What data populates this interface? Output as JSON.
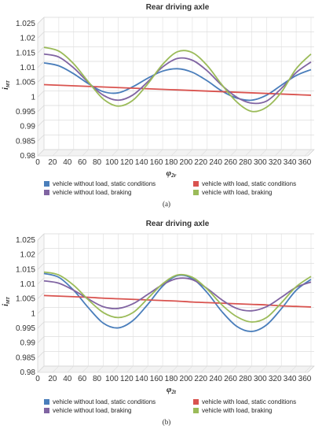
{
  "chart_data": [
    {
      "type": "line",
      "title": "Rear driving axle",
      "xlabel": "φ",
      "xlabel_sub": "2r",
      "ylabel": "i",
      "ylabel_sub": "MT",
      "ylim": [
        0.98,
        1.025
      ],
      "yticks": [
        "0.98",
        "0.985",
        "0.99",
        "0.995",
        "1",
        "1.005",
        "1.01",
        "1.015",
        "1.02",
        "1.025"
      ],
      "x": [
        0,
        20,
        40,
        60,
        80,
        100,
        120,
        140,
        160,
        180,
        200,
        220,
        240,
        260,
        280,
        300,
        320,
        340,
        360
      ],
      "grid": true,
      "legend_position": "bottom",
      "series": [
        {
          "name": "vehicle without load, static conditions",
          "color": "#4a7ebb",
          "values": [
            1.0095,
            1.0085,
            1.0058,
            1.0024,
            0.9997,
            0.9993,
            1.0014,
            1.0043,
            1.0067,
            1.0075,
            1.0063,
            1.0034,
            0.9999,
            0.9975,
            0.9968,
            0.9985,
            1.0019,
            1.0052,
            1.0072
          ]
        },
        {
          "name": "vehicle with load, static conditions",
          "color": "#d9534f",
          "values": [
            1.0021,
            1.0019,
            1.0017,
            1.0015,
            1.0013,
            1.0011,
            1.0009,
            1.0007,
            1.0005,
            1.0003,
            1.0001,
            0.9999,
            0.9997,
            0.9995,
            0.9993,
            0.9991,
            0.9989,
            0.9987,
            0.9985
          ]
        },
        {
          "name": "vehicle without load, braking",
          "color": "#8064a2",
          "values": [
            1.0125,
            1.0115,
            1.0078,
            1.0028,
            0.9985,
            0.9968,
            0.9986,
            1.0031,
            1.0081,
            1.011,
            1.0104,
            1.0068,
            1.0018,
            0.9978,
            0.9958,
            0.9965,
            1.0008,
            1.0062,
            1.0098
          ]
        },
        {
          "name": "vehicle with load, braking",
          "color": "#9bbb59",
          "values": [
            1.0148,
            1.0135,
            1.0092,
            1.003,
            0.9972,
            0.9948,
            0.9968,
            1.0024,
            1.009,
            1.0133,
            1.013,
            1.0086,
            1.002,
            0.9962,
            0.993,
            0.9944,
            0.9995,
            1.0075,
            1.0125
          ]
        }
      ],
      "caption": "(a)"
    },
    {
      "type": "line",
      "title": "Rear driving axle",
      "xlabel": "φ",
      "xlabel_sub": "2t",
      "ylabel": "i",
      "ylabel_sub": "MT",
      "ylim": [
        0.98,
        1.025
      ],
      "yticks": [
        "0.98",
        "0.985",
        "0.99",
        "0.995",
        "1",
        "1.005",
        "1.01",
        "1.015",
        "1.02",
        "1.025"
      ],
      "x": [
        0,
        20,
        40,
        60,
        80,
        100,
        120,
        140,
        160,
        180,
        200,
        220,
        240,
        260,
        280,
        300,
        320,
        340,
        360
      ],
      "grid": true,
      "legend_position": "bottom",
      "series": [
        {
          "name": "vehicle without load, static conditions",
          "color": "#4a7ebb",
          "values": [
            1.0115,
            1.0102,
            1.0058,
            0.9998,
            0.9946,
            0.993,
            0.9955,
            1.001,
            1.0072,
            1.0108,
            1.0098,
            1.005,
            0.9985,
            0.9935,
            0.9918,
            0.994,
            0.9995,
            1.0058,
            1.0095
          ]
        },
        {
          "name": "vehicle with load, static conditions",
          "color": "#d9534f",
          "values": [
            1.004,
            1.0038,
            1.0036,
            1.0034,
            1.0031,
            1.0029,
            1.0027,
            1.0025,
            1.0023,
            1.0021,
            1.0018,
            1.0016,
            1.0014,
            1.0012,
            1.001,
            1.0008,
            1.0005,
            1.0003,
            1.0001
          ]
        },
        {
          "name": "vehicle without load, braking",
          "color": "#8064a2",
          "values": [
            1.009,
            1.0082,
            1.0058,
            1.0028,
            1.0002,
            0.9996,
            1.0012,
            1.0044,
            1.0077,
            1.0098,
            1.0094,
            1.0064,
            1.0025,
            0.9996,
            0.9988,
            1.0002,
            1.0034,
            1.0068,
            1.0086
          ]
        },
        {
          "name": "vehicle with load, braking",
          "color": "#9bbb59",
          "values": [
            1.012,
            1.011,
            1.0075,
            1.0025,
            0.9982,
            0.9965,
            0.9982,
            1.003,
            1.008,
            1.011,
            1.0102,
            1.0062,
            1.0008,
            0.9968,
            0.995,
            0.9965,
            1.0015,
            1.007,
            1.0105
          ]
        }
      ],
      "caption": "(b)"
    }
  ]
}
